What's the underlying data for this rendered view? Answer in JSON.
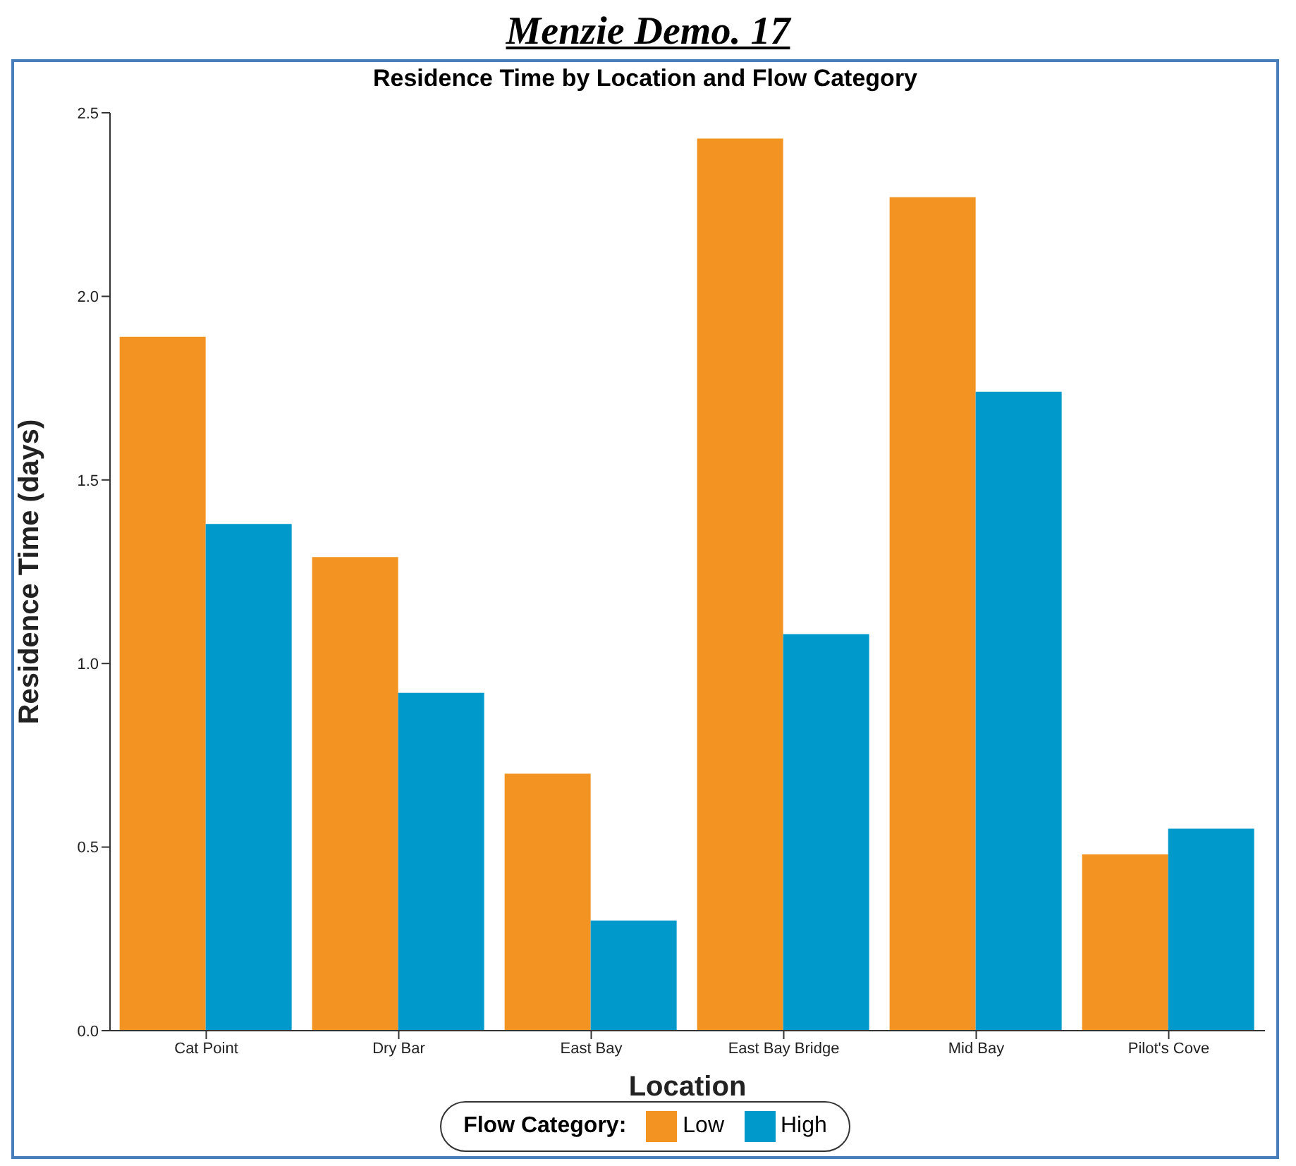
{
  "chart_data": {
    "type": "bar",
    "title": "Menzie Demo. 17",
    "subtitle": "Residence Time by Location and Flow Category",
    "xlabel": "Location",
    "ylabel": "Residence Time (days)",
    "legend_title": "Flow Category:",
    "categories": [
      "Cat Point",
      "Dry Bar",
      "East Bay",
      "East Bay Bridge",
      "Mid Bay",
      "Pilot's Cove"
    ],
    "series": [
      {
        "name": "Low",
        "color": "#f39322",
        "values": [
          1.89,
          1.29,
          0.7,
          2.43,
          2.27,
          0.48
        ]
      },
      {
        "name": "High",
        "color": "#0099cc",
        "values": [
          1.38,
          0.92,
          0.3,
          1.08,
          1.74,
          0.55
        ]
      }
    ],
    "ylim": [
      0,
      2.5
    ],
    "yticks": [
      {
        "value": 0,
        "label": "0.0"
      },
      {
        "value": 0.5,
        "label": "0.5"
      },
      {
        "value": 1,
        "label": "1.0"
      },
      {
        "value": 1.5,
        "label": "1.5"
      },
      {
        "value": 2,
        "label": "2.0"
      },
      {
        "value": 2.5,
        "label": "2.5"
      }
    ],
    "grid": false,
    "legend": "bottom"
  }
}
